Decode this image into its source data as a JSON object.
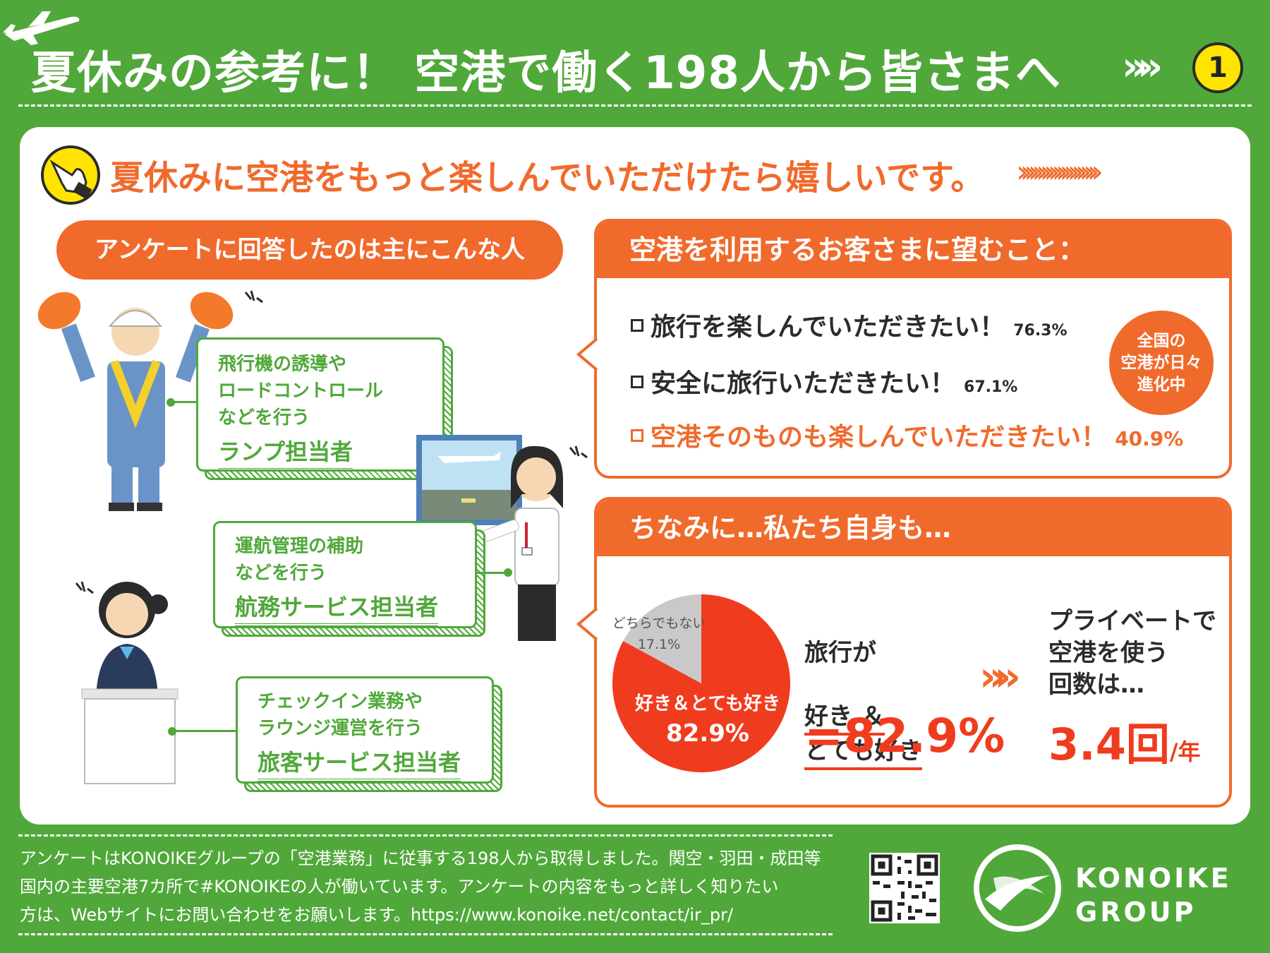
{
  "header": {
    "title": "夏休みの参考に！ 空港で働く198人から皆さまへ",
    "chevrons": "»»",
    "page_number": "1"
  },
  "subheading": {
    "text": "夏休みに空港をもっと楽しんでいただけたら嬉しいです。",
    "chevrons": "››››››››››››››››››››"
  },
  "respondents": {
    "title": "アンケートに回答したのは主にこんな人",
    "roles": [
      {
        "desc": "飛行機の誘導や\nロードコントロール\nなどを行う",
        "title": "ランプ担当者"
      },
      {
        "desc": "運航管理の補助\nなどを行う",
        "title": "航務サービス担当者"
      },
      {
        "desc": "チェックイン業務や\nラウンジ運営を行う",
        "title": "旅客サービス担当者"
      }
    ]
  },
  "wishes": {
    "title": "空港を利用するお客さまに望むこと：",
    "items": [
      {
        "text": "旅行を楽しんでいただきたい！",
        "percent": "76.3%"
      },
      {
        "text": "安全に旅行いただきたい！",
        "percent": "67.1%"
      },
      {
        "text": "空港そのものも楽しんでいただきたい！",
        "percent": "40.9%"
      }
    ],
    "badge": "全国の\n空港が日々\n進化中"
  },
  "ourselves": {
    "title": "ちなみに…私たち自身も…",
    "travel_label_line1": "旅行が",
    "travel_label_line2": "好き ＆",
    "travel_label_line3": "とても好き",
    "travel_value": "=82.9%",
    "arrow": "»»",
    "airport_label": "プライベートで\n空港を使う\n回数は…",
    "airport_value": "3.4回",
    "airport_unit": "/年"
  },
  "chart_data": {
    "type": "pie",
    "categories": [
      "好き＆とても好き",
      "どちらでもない"
    ],
    "values": [
      82.9,
      17.1
    ],
    "labels": [
      "82.9%",
      "17.1%"
    ],
    "colors": [
      "#f03c1e",
      "#c9c9c9"
    ]
  },
  "footer": {
    "text": "アンケートはKONOIKEグループの「空港業務」に従事する198人から取得しました。関空・羽田・成田等\n国内の主要空港7カ所で#KONOIKEの人が働いています。アンケートの内容をもっと詳しく知りたい\n方は、Webサイトにお問い合わせをお願いします。https://www.konoike.net/contact/ir_pr/",
    "logo_text": "KONOIKE\nGROUP"
  }
}
